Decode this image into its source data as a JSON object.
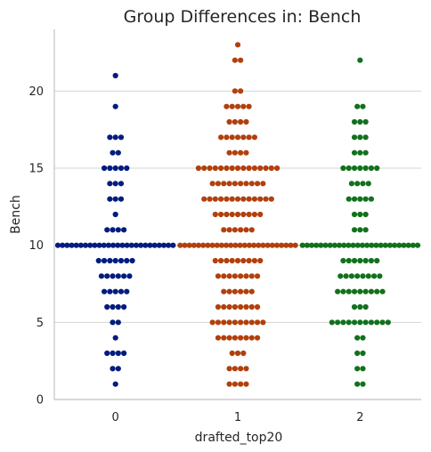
{
  "chart_data": {
    "type": "swarm",
    "title": "Group Differences in: Bench",
    "xlabel": "drafted_top20",
    "ylabel": "Bench",
    "categories": [
      "0",
      "1",
      "2"
    ],
    "ylim": [
      0,
      24
    ],
    "yticks": [
      0,
      5,
      10,
      15,
      20
    ],
    "grid": "horizontal",
    "series": [
      {
        "category": "0",
        "color": "#001c7f",
        "counts": {
          "1": 1,
          "2": 2,
          "3": 4,
          "4": 1,
          "5": 2,
          "6": 4,
          "7": 5,
          "8": 6,
          "9": 7,
          "10": 26,
          "11": 4,
          "12": 1,
          "13": 3,
          "14": 3,
          "15": 5,
          "16": 2,
          "17": 3,
          "19": 1,
          "21": 1
        }
      },
      {
        "category": "1",
        "color": "#b1400d",
        "counts": {
          "1": 4,
          "2": 4,
          "3": 3,
          "4": 8,
          "5": 10,
          "6": 8,
          "7": 6,
          "8": 8,
          "9": 9,
          "10": 26,
          "11": 6,
          "12": 9,
          "13": 13,
          "14": 10,
          "15": 15,
          "16": 4,
          "17": 7,
          "18": 4,
          "19": 5,
          "20": 2,
          "22": 2,
          "23": 1
        }
      },
      {
        "category": "2",
        "color": "#12711c",
        "counts": {
          "1": 2,
          "2": 2,
          "3": 2,
          "4": 2,
          "5": 11,
          "6": 3,
          "7": 9,
          "8": 8,
          "9": 7,
          "10": 26,
          "11": 3,
          "12": 3,
          "13": 5,
          "14": 4,
          "15": 7,
          "16": 3,
          "17": 3,
          "18": 3,
          "19": 2,
          "22": 1
        }
      }
    ]
  }
}
